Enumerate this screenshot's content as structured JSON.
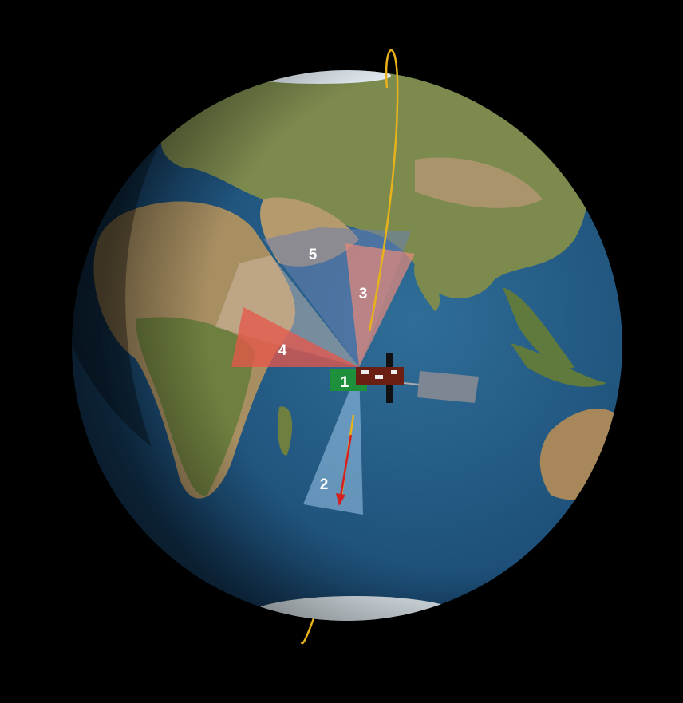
{
  "beams": [
    {
      "label": "1"
    },
    {
      "label": "2"
    },
    {
      "label": "3"
    },
    {
      "label": "4"
    },
    {
      "label": "5"
    }
  ]
}
